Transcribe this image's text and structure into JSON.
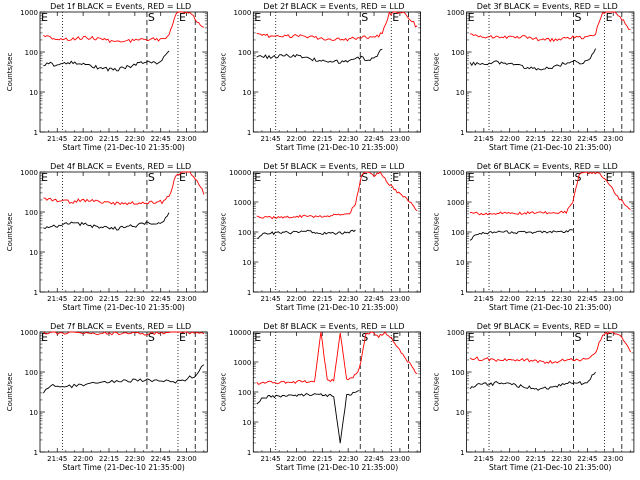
{
  "chart_data": [
    {
      "type": "line",
      "title": "Det 1f BLACK = Events, RED = LLD",
      "xlabel": "Start Time (21-Dec-10 21:35:00)",
      "ylabel": "Counts/sec",
      "yscale": "log",
      "ylim": [
        1,
        1000
      ],
      "xticks": [
        "21:45",
        "22:00",
        "22:15",
        "22:30",
        "22:45",
        "23:00"
      ],
      "yticks": [
        "1",
        "10",
        "100",
        "1000"
      ],
      "markers": [
        "E",
        "S",
        "E"
      ],
      "series": [
        {
          "color": "#ff0000",
          "values": [
            250,
            230,
            220,
            215,
            210,
            220,
            225,
            220,
            210,
            195,
            185,
            180,
            185,
            190,
            205,
            210,
            205,
            210,
            270,
            900,
            1000,
            950,
            600,
            380
          ]
        },
        {
          "color": "#000000",
          "values": [
            50,
            50,
            48,
            52,
            55,
            55,
            52,
            45,
            40,
            38,
            36,
            38,
            42,
            48,
            55,
            58,
            50,
            62,
            110,
            null,
            null,
            null,
            null,
            null
          ]
        }
      ]
    },
    {
      "type": "line",
      "title": "Det 2f BLACK = Events, RED = LLD",
      "xlabel": "Start Time (21-Dec-10 21:35:00)",
      "ylabel": "Counts/sec",
      "yscale": "log",
      "ylim": [
        1,
        1000
      ],
      "xticks": [
        "21:45",
        "22:00",
        "22:15",
        "22:30",
        "22:45",
        "23:00"
      ],
      "yticks": [
        "1",
        "10",
        "100",
        "1000"
      ],
      "markers": [
        "E",
        "S",
        "E"
      ],
      "series": [
        {
          "color": "#ff0000",
          "values": [
            270,
            260,
            250,
            245,
            240,
            250,
            255,
            250,
            240,
            225,
            215,
            205,
            205,
            210,
            220,
            230,
            225,
            230,
            290,
            900,
            1000,
            950,
            650,
            420
          ]
        },
        {
          "color": "#000000",
          "values": [
            80,
            78,
            75,
            78,
            80,
            82,
            80,
            75,
            65,
            60,
            58,
            55,
            58,
            62,
            70,
            72,
            60,
            70,
            120,
            null,
            null,
            null,
            null,
            null
          ]
        }
      ]
    },
    {
      "type": "line",
      "title": "Det 3f BLACK = Events, RED = LLD",
      "xlabel": "Start Time (21-Dec-10 21:35:00)",
      "ylabel": "Counts/sec",
      "yscale": "log",
      "ylim": [
        1,
        1000
      ],
      "xticks": [
        "21:45",
        "22:00",
        "22:15",
        "22:30",
        "22:45",
        "23:00"
      ],
      "yticks": [
        "1",
        "10",
        "100",
        "1000"
      ],
      "markers": [
        "E",
        "S",
        "E"
      ],
      "series": [
        {
          "color": "#ff0000",
          "values": [
            280,
            250,
            240,
            235,
            230,
            240,
            245,
            240,
            230,
            215,
            205,
            200,
            205,
            210,
            220,
            230,
            225,
            235,
            300,
            900,
            1000,
            950,
            620,
            350
          ]
        },
        {
          "color": "#000000",
          "values": [
            50,
            50,
            48,
            52,
            55,
            55,
            52,
            45,
            40,
            38,
            36,
            38,
            42,
            48,
            55,
            58,
            50,
            62,
            110,
            null,
            null,
            null,
            null,
            null
          ]
        }
      ]
    },
    {
      "type": "line",
      "title": "Det 4f BLACK = Events, RED = LLD",
      "xlabel": "Start Time (21-Dec-10 21:35:00)",
      "ylabel": "Counts/sec",
      "yscale": "log",
      "ylim": [
        1,
        1000
      ],
      "xticks": [
        "21:45",
        "22:00",
        "22:15",
        "22:30",
        "22:45",
        "23:00"
      ],
      "yticks": [
        "1",
        "10",
        "100",
        "1000"
      ],
      "markers": [
        "E",
        "S",
        "E"
      ],
      "series": [
        {
          "color": "#ff0000",
          "values": [
            210,
            200,
            190,
            185,
            180,
            190,
            195,
            190,
            180,
            170,
            165,
            160,
            160,
            165,
            170,
            175,
            170,
            180,
            240,
            850,
            1000,
            950,
            600,
            300
          ]
        },
        {
          "color": "#000000",
          "values": [
            40,
            42,
            45,
            48,
            52,
            50,
            50,
            45,
            42,
            40,
            38,
            40,
            42,
            45,
            50,
            52,
            45,
            55,
            100,
            null,
            null,
            null,
            null,
            null
          ]
        }
      ]
    },
    {
      "type": "line",
      "title": "Det 5f BLACK = Events, RED = LLD",
      "xlabel": "Start Time (21-Dec-10 21:35:00)",
      "ylabel": "Counts/sec",
      "yscale": "log",
      "ylim": [
        1,
        10000
      ],
      "xticks": [
        "21:45",
        "22:00",
        "22:15",
        "22:30",
        "22:45",
        "23:00"
      ],
      "yticks": [
        "1",
        "10",
        "100",
        "1000",
        "10000"
      ],
      "markers": [
        "E",
        "S",
        "E"
      ],
      "series": [
        {
          "color": "#ff0000",
          "values": [
            330,
            310,
            300,
            300,
            305,
            310,
            320,
            330,
            340,
            340,
            340,
            345,
            350,
            360,
            380,
            420,
            900,
            8000,
            10000,
            7000,
            10000,
            5000,
            3000,
            2000,
            1500,
            900,
            500
          ]
        },
        {
          "color": "#000000",
          "values": [
            60,
            85,
            90,
            92,
            95,
            95,
            98,
            100,
            105,
            100,
            95,
            90,
            88,
            90,
            95,
            100,
            110,
            null,
            null,
            null,
            null,
            null,
            null,
            null,
            null,
            null,
            null
          ]
        }
      ]
    },
    {
      "type": "line",
      "title": "Det 6f BLACK = Events, RED = LLD",
      "xlabel": "Start Time (21-Dec-10 21:35:00)",
      "ylabel": "Counts/sec",
      "yscale": "log",
      "ylim": [
        1,
        10000
      ],
      "xticks": [
        "21:45",
        "22:00",
        "22:15",
        "22:30",
        "22:45",
        "23:00"
      ],
      "yticks": [
        "1",
        "10",
        "100",
        "1000",
        "10000"
      ],
      "markers": [
        "E",
        "S",
        "E"
      ],
      "series": [
        {
          "color": "#ff0000",
          "values": [
            450,
            420,
            410,
            410,
            415,
            420,
            420,
            425,
            425,
            430,
            430,
            430,
            435,
            440,
            450,
            460,
            1000,
            8000,
            10000,
            9000,
            10000,
            6000,
            3000,
            1500,
            900,
            600
          ]
        },
        {
          "color": "#000000",
          "values": [
            50,
            85,
            95,
            95,
            95,
            100,
            100,
            95,
            95,
            100,
            98,
            100,
            100,
            100,
            98,
            100,
            120,
            null,
            null,
            null,
            null,
            null,
            null,
            null,
            null,
            null
          ]
        }
      ]
    },
    {
      "type": "line",
      "title": "Det 7f BLACK = Events, RED = LLD",
      "xlabel": "Start Time (21-Dec-10 21:35:00)",
      "ylabel": "Counts/sec",
      "yscale": "log",
      "ylim": [
        1,
        1000
      ],
      "xticks": [
        "21:45",
        "22:00",
        "22:15",
        "22:30",
        "22:45",
        "23:00"
      ],
      "yticks": [
        "1",
        "10",
        "100",
        "1000"
      ],
      "markers": [
        "E",
        "S",
        "E"
      ],
      "series": [
        {
          "color": "#ff0000",
          "values": [
            1000,
            950,
            900,
            950,
            980,
            950,
            900,
            920,
            950,
            930,
            900,
            920,
            950,
            980,
            1000,
            1000,
            1000,
            1000
          ]
        },
        {
          "color": "#000000",
          "values": [
            30,
            45,
            42,
            45,
            48,
            50,
            52,
            55,
            58,
            60,
            62,
            65,
            62,
            60,
            58,
            65,
            80,
            150
          ]
        }
      ]
    },
    {
      "type": "line",
      "title": "Det 8f BLACK = Events, RED = LLD",
      "xlabel": "Start Time (21-Dec-10 21:35:00)",
      "ylabel": "Counts/sec",
      "yscale": "log",
      "ylim": [
        1,
        10000
      ],
      "xticks": [
        "21:45",
        "22:00",
        "22:15",
        "22:30",
        "22:45",
        "23:00"
      ],
      "yticks": [
        "1",
        "10",
        "100",
        "1000",
        "10000"
      ],
      "markers": [
        "E",
        "S",
        "E"
      ],
      "series": [
        {
          "color": "#ff0000",
          "values": [
            200,
            200,
            210,
            200,
            205,
            210,
            215,
            220,
            230,
            240,
            10000,
            250,
            240,
            10000,
            280,
            300,
            600,
            8000,
            10000,
            7000,
            10000,
            6000,
            3000,
            1500,
            800,
            400
          ]
        },
        {
          "color": "#000000",
          "values": [
            40,
            65,
            70,
            72,
            75,
            75,
            78,
            80,
            82,
            85,
            80,
            78,
            75,
            2,
            80,
            90,
            120,
            null,
            null,
            null,
            null,
            null,
            null,
            null,
            null,
            null
          ]
        }
      ]
    },
    {
      "type": "line",
      "title": "Det 9f BLACK = Events, RED = LLD",
      "xlabel": "Start Time (21-Dec-10 21:35:00)",
      "ylabel": "Counts/sec",
      "yscale": "log",
      "ylim": [
        1,
        1000
      ],
      "xticks": [
        "21:45",
        "22:00",
        "22:15",
        "22:30",
        "22:45",
        "23:00"
      ],
      "yticks": [
        "1",
        "10",
        "100",
        "1000"
      ],
      "markers": [
        "E",
        "S",
        "E"
      ],
      "series": [
        {
          "color": "#ff0000",
          "values": [
            230,
            215,
            210,
            205,
            200,
            205,
            210,
            205,
            200,
            190,
            180,
            175,
            180,
            190,
            200,
            210,
            205,
            215,
            280,
            900,
            1000,
            950,
            650,
            300
          ]
        },
        {
          "color": "#000000",
          "values": [
            40,
            50,
            48,
            50,
            55,
            55,
            52,
            45,
            42,
            40,
            38,
            40,
            42,
            48,
            55,
            58,
            50,
            60,
            105,
            null,
            null,
            null,
            null,
            null
          ]
        }
      ]
    }
  ]
}
